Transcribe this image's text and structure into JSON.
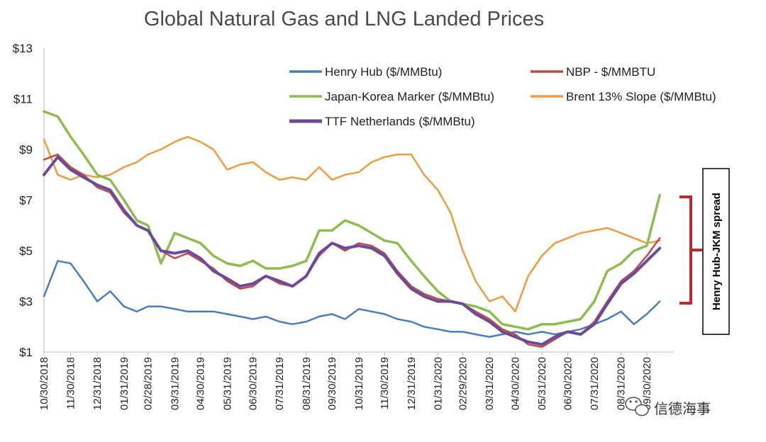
{
  "chart_data": {
    "type": "line",
    "title": "Global Natural Gas and LNG Landed Prices",
    "ylim": [
      1,
      13
    ],
    "yticks": [
      "$1",
      "$3",
      "$5",
      "$7",
      "$9",
      "$11",
      "$13"
    ],
    "ytick_values": [
      1,
      3,
      5,
      7,
      9,
      11,
      13
    ],
    "xticks": [
      "10/30/2018",
      "11/30/2018",
      "12/31/2018",
      "01/31/2019",
      "02/28/2019",
      "03/31/2019",
      "04/30/2019",
      "05/31/2019",
      "06/30/2019",
      "07/31/2019",
      "08/31/2019",
      "09/30/2019",
      "10/31/2019",
      "11/30/2019",
      "12/31/2019",
      "01/31/2020",
      "02/29/2020",
      "03/31/2020",
      "04/30/2020",
      "05/31/2020",
      "06/30/2020",
      "07/31/2020",
      "08/31/2020",
      "09/30/2020"
    ],
    "x": [
      "10/30/2018",
      "11/15/2018",
      "11/30/2018",
      "12/15/2018",
      "12/31/2018",
      "01/15/2019",
      "01/31/2019",
      "02/15/2019",
      "02/28/2019",
      "03/15/2019",
      "03/31/2019",
      "04/15/2019",
      "04/30/2019",
      "05/15/2019",
      "05/31/2019",
      "06/15/2019",
      "06/30/2019",
      "07/15/2019",
      "07/31/2019",
      "08/15/2019",
      "08/31/2019",
      "09/15/2019",
      "09/30/2019",
      "10/15/2019",
      "10/31/2019",
      "11/15/2019",
      "11/30/2019",
      "12/15/2019",
      "12/31/2019",
      "01/15/2020",
      "01/31/2020",
      "02/15/2020",
      "02/29/2020",
      "03/15/2020",
      "03/31/2020",
      "04/15/2020",
      "04/30/2020",
      "05/15/2020",
      "05/31/2020",
      "06/15/2020",
      "06/30/2020",
      "07/15/2020",
      "07/31/2020",
      "08/15/2020",
      "08/31/2020",
      "09/15/2020",
      "09/30/2020",
      "10/15/2020"
    ],
    "series": [
      {
        "name": "Henry Hub ($/MMBtu)",
        "color": "#4a7ebb",
        "values": [
          3.2,
          4.6,
          4.5,
          3.8,
          3.0,
          3.4,
          2.8,
          2.6,
          2.8,
          2.8,
          2.7,
          2.6,
          2.6,
          2.6,
          2.5,
          2.4,
          2.3,
          2.4,
          2.2,
          2.1,
          2.2,
          2.4,
          2.5,
          2.3,
          2.7,
          2.6,
          2.5,
          2.3,
          2.2,
          2.0,
          1.9,
          1.8,
          1.8,
          1.7,
          1.6,
          1.7,
          1.8,
          1.7,
          1.8,
          1.7,
          1.8,
          1.9,
          2.1,
          2.3,
          2.6,
          2.1,
          2.5,
          3.0
        ]
      },
      {
        "name": "NBP - $/MMBTU",
        "color": "#be4b48",
        "values": [
          8.6,
          8.8,
          8.3,
          8.0,
          7.5,
          7.3,
          6.5,
          6.0,
          5.8,
          5.0,
          4.7,
          4.9,
          4.6,
          4.3,
          3.8,
          3.5,
          3.6,
          4.0,
          3.7,
          3.6,
          4.0,
          4.8,
          5.3,
          5.0,
          5.3,
          5.2,
          4.9,
          4.2,
          3.6,
          3.3,
          3.1,
          3.0,
          2.9,
          2.6,
          2.3,
          1.9,
          1.7,
          1.3,
          1.2,
          1.5,
          1.8,
          1.7,
          2.2,
          3.0,
          3.8,
          4.2,
          4.8,
          5.5
        ]
      },
      {
        "name": "Japan-Korea Marker ($/MMBtu)",
        "color": "#8ebc4f",
        "values": [
          10.5,
          10.3,
          9.5,
          8.8,
          8.0,
          7.8,
          7.0,
          6.2,
          6.0,
          4.5,
          5.7,
          5.5,
          5.3,
          4.8,
          4.5,
          4.4,
          4.6,
          4.3,
          4.3,
          4.4,
          4.6,
          5.8,
          5.8,
          6.2,
          6.0,
          5.7,
          5.4,
          5.3,
          4.6,
          4.0,
          3.4,
          3.0,
          2.9,
          2.8,
          2.6,
          2.1,
          2.0,
          1.9,
          2.1,
          2.1,
          2.2,
          2.3,
          3.0,
          4.2,
          4.5,
          5.0,
          5.2,
          7.2
        ]
      },
      {
        "name": "Brent 13% Slope ($/MMBtu)",
        "color": "#f29b3e",
        "values": [
          9.4,
          8.0,
          7.8,
          8.0,
          7.9,
          8.0,
          8.3,
          8.5,
          8.8,
          9.0,
          9.3,
          9.5,
          9.3,
          9.0,
          8.2,
          8.4,
          8.5,
          8.1,
          7.8,
          7.9,
          7.8,
          8.3,
          7.8,
          8.0,
          8.1,
          8.5,
          8.7,
          8.8,
          8.8,
          8.0,
          7.4,
          6.5,
          5.0,
          3.8,
          3.0,
          3.2,
          2.6,
          4.0,
          4.8,
          5.3,
          5.5,
          5.7,
          5.8,
          5.9,
          5.7,
          5.5,
          5.3,
          5.4
        ]
      },
      {
        "name": "TTF Netherlands ($/MMBtu)",
        "color": "#6c4a9b",
        "values": [
          8.0,
          8.7,
          8.2,
          7.9,
          7.6,
          7.4,
          6.6,
          6.0,
          5.8,
          5.0,
          4.9,
          5.0,
          4.7,
          4.2,
          3.9,
          3.6,
          3.7,
          4.0,
          3.8,
          3.6,
          4.0,
          4.9,
          5.3,
          5.1,
          5.2,
          5.1,
          4.8,
          4.1,
          3.5,
          3.2,
          3.0,
          3.0,
          2.9,
          2.5,
          2.2,
          1.8,
          1.6,
          1.4,
          1.3,
          1.6,
          1.8,
          1.7,
          2.1,
          2.9,
          3.7,
          4.1,
          4.6,
          5.1
        ]
      }
    ],
    "legend_placement": "top-right, two columns",
    "grid": false,
    "annotations": [
      {
        "text": "Henry Hub-JKM spread",
        "color": "#c0282d"
      }
    ]
  },
  "watermark": {
    "text": "信德海事",
    "icon": "wechat-icon"
  }
}
